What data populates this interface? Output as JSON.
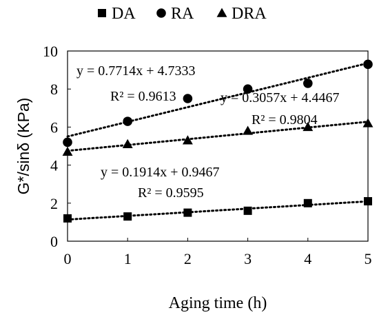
{
  "chart_data": {
    "type": "scatter",
    "xlabel": "Aging time (h)",
    "ylabel": "G*/sinδ (KPa)",
    "xlim": [
      0,
      5
    ],
    "ylim": [
      0,
      10
    ],
    "x_ticks": [
      "0",
      "1",
      "2",
      "3",
      "4",
      "5"
    ],
    "y_ticks": [
      "0",
      "2",
      "4",
      "6",
      "8",
      "10"
    ],
    "grid": false,
    "legend_position": "top",
    "series": [
      {
        "name": "DA",
        "marker": "square",
        "x": [
          0,
          1,
          2,
          3,
          4,
          5
        ],
        "y": [
          1.2,
          1.3,
          1.5,
          1.6,
          2.0,
          2.1
        ],
        "trendline": {
          "slope": 0.1914,
          "intercept": 0.9467,
          "equation": "y = 0.1914x + 0.9467",
          "r2": "R² = 0.9595"
        }
      },
      {
        "name": "RA",
        "marker": "circle",
        "x": [
          0,
          1,
          2,
          3,
          4,
          5
        ],
        "y": [
          5.2,
          6.3,
          7.5,
          8.0,
          8.3,
          9.3
        ],
        "trendline": {
          "slope": 0.7714,
          "intercept": 4.7333,
          "equation": "y = 0.7714x + 4.7333",
          "r2": "R² = 0.9613"
        }
      },
      {
        "name": "DRA",
        "marker": "triangle",
        "x": [
          0,
          1,
          2,
          3,
          4,
          5
        ],
        "y": [
          4.7,
          5.1,
          5.3,
          5.8,
          6.0,
          6.2
        ],
        "trendline": {
          "slope": 0.3057,
          "intercept": 4.4467,
          "equation": "y = 0.3057x + 4.4467",
          "r2": "R² = 0.9804"
        }
      }
    ]
  }
}
